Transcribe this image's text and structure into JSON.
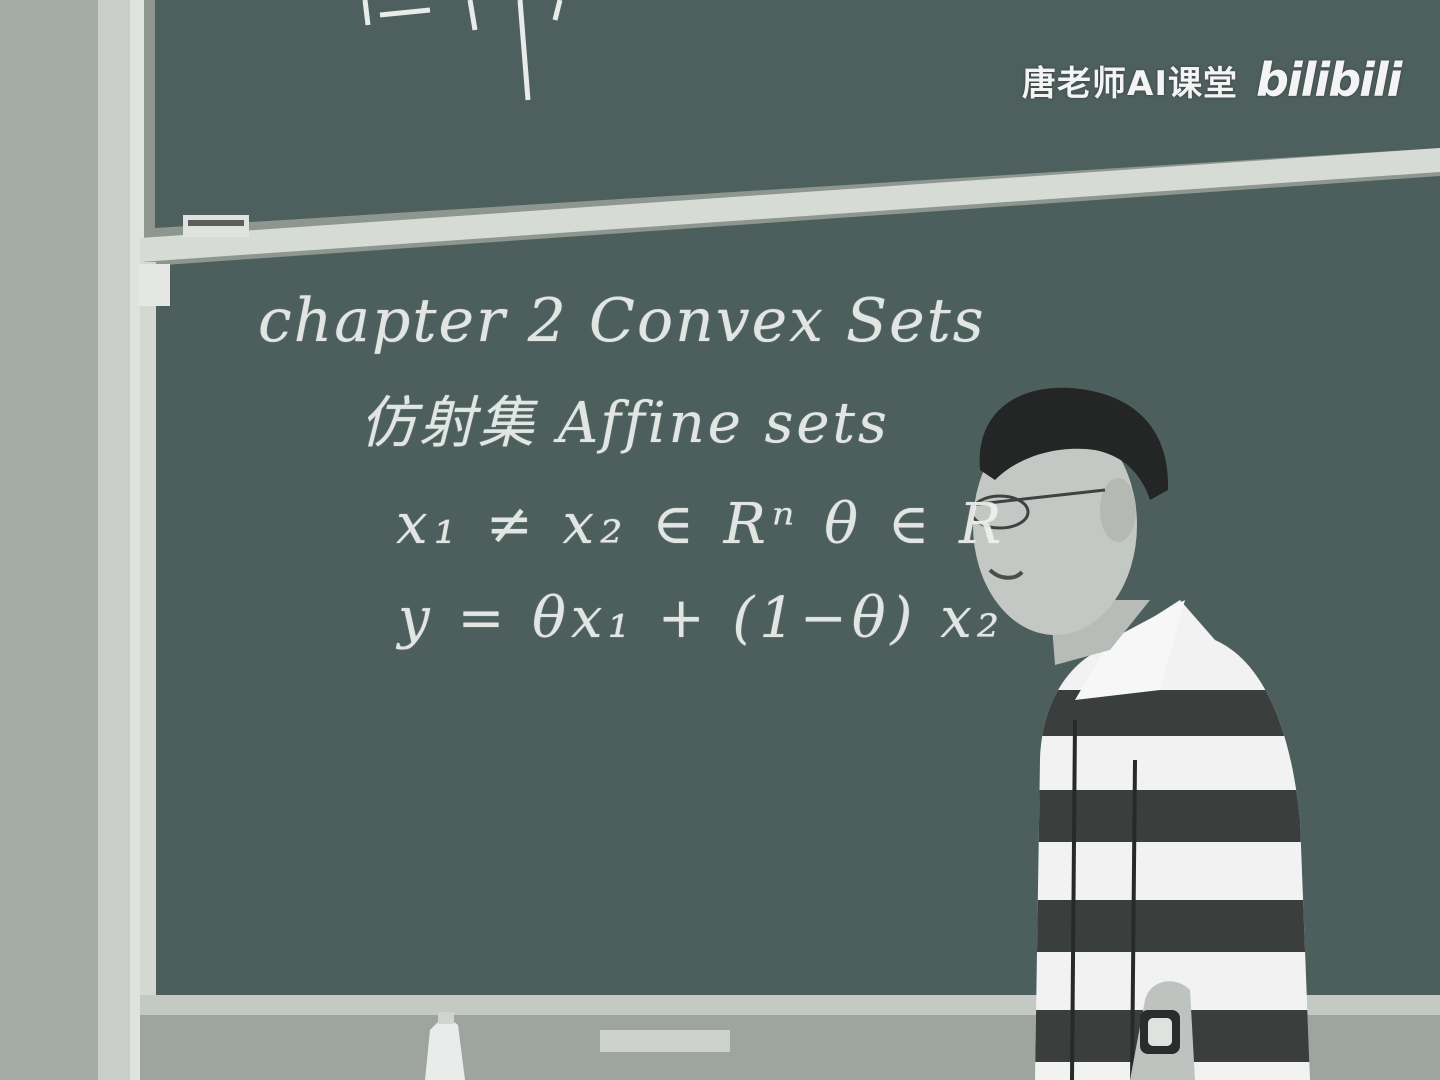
{
  "watermark": {
    "channel": "唐老师AI课堂",
    "logo": "bilibili"
  },
  "blackboard": {
    "line1": "chapter 2   Convex Sets",
    "line2": "仿射集   Affine sets",
    "line3": "x₁ ≠ x₂ ∈ Rⁿ   θ ∈ R",
    "line4": "y = θx₁ + (1−θ) x₂"
  },
  "colors": {
    "board": "#4d5f5d",
    "chalk": "#eef1ee",
    "frame": "#c7ccc7"
  }
}
